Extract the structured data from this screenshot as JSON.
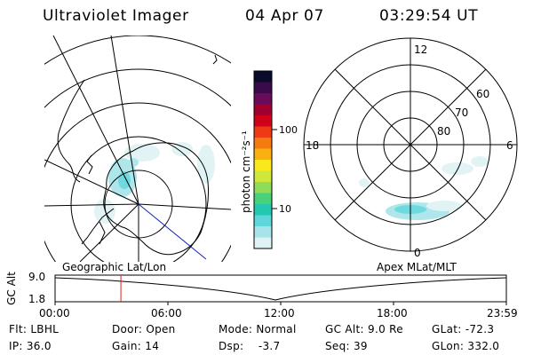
{
  "header": {
    "instrument": "Ultraviolet Imager",
    "date": "04 Apr 07",
    "time": "03:29:54 UT"
  },
  "colorbar": {
    "label": "photon cm⁻²s⁻¹",
    "scale": "log",
    "ticks": [
      "100",
      "10"
    ],
    "colors": [
      "#0a0a2a",
      "#3a0a4a",
      "#6a0a5a",
      "#a00030",
      "#d0001a",
      "#ee3a14",
      "#f57a10",
      "#f9b010",
      "#fbe81a",
      "#cfe63a",
      "#8edc5a",
      "#48d07a",
      "#22c8b0",
      "#5fd6dc",
      "#a6e4ea",
      "#dff2f4"
    ]
  },
  "geo_panel": {
    "label": "Geographic Lat/Lon"
  },
  "apex_panel": {
    "label": "Apex MLat/MLT",
    "mlt_labels": {
      "top": "12",
      "left": "18",
      "right": "6",
      "bottom": "0"
    },
    "lat_labels": [
      "60",
      "70",
      "80"
    ]
  },
  "altitude_plot": {
    "ylabel": "GC Alt",
    "yticks": [
      "9.0",
      "1.8"
    ],
    "xticks": [
      "00:00",
      "06:00",
      "12:00",
      "18:00",
      "23:59"
    ],
    "current_time_hours": 3.5
  },
  "status": {
    "row1": [
      {
        "key": "Flt:",
        "value": "LBHL"
      },
      {
        "key": "Door:",
        "value": "Open"
      },
      {
        "key": "Mode:",
        "value": "Normal"
      },
      {
        "key": "GC Alt:",
        "value": "9.0 Re"
      },
      {
        "key": "GLat:",
        "value": "-72.3"
      }
    ],
    "row2": [
      {
        "key": "IP:",
        "value": "36.0"
      },
      {
        "key": "Gain:",
        "value": "14"
      },
      {
        "key": "Dsp:",
        "value": "-3.7"
      },
      {
        "key": "Seq:",
        "value": "39"
      },
      {
        "key": "GLon:",
        "value": "332.0"
      }
    ]
  }
}
